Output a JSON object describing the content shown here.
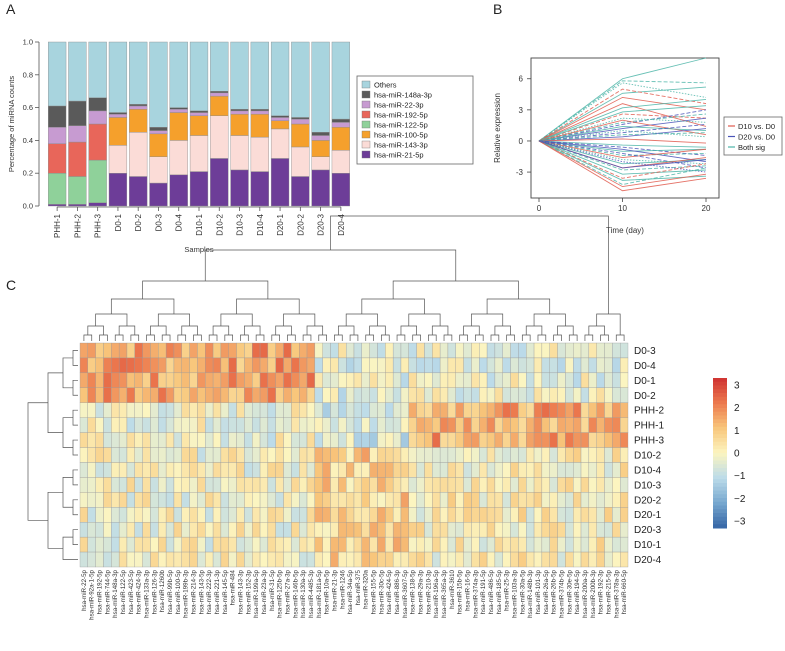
{
  "panel_letters": {
    "a": "A",
    "b": "B",
    "c": "C"
  },
  "colors": {
    "Others": "#a8d4de",
    "hsa-miR-148a-3p": "#5a5a5a",
    "hsa-miR-22-3p": "#c79bd1",
    "hsa-miR-192-5p": "#e8665a",
    "hsa-miR-122-5p": "#8fd19a",
    "hsa-miR-100-5p": "#f5a02c",
    "hsa-miR-143-3p": "#fbdcd7",
    "hsa-miR-21-5p": "#6d3d98"
  },
  "chart_data": [
    {
      "type": "bar",
      "stacked": true,
      "title": "",
      "xlabel": "Samples",
      "ylabel": "Percentage of miRNA counts",
      "ylim": [
        0,
        1.0
      ],
      "yticks": [
        "0.0",
        "0.2",
        "0.4",
        "0.6",
        "0.8",
        "1.0"
      ],
      "categories": [
        "PHH-1",
        "PHH-2",
        "PHH-3",
        "D0-1",
        "D0-2",
        "D0-3",
        "D0-4",
        "D10-1",
        "D10-2",
        "D10-3",
        "D10-4",
        "D20-1",
        "D20-2",
        "D20-3",
        "D20-4"
      ],
      "legend_order": [
        "Others",
        "hsa-miR-148a-3p",
        "hsa-miR-22-3p",
        "hsa-miR-192-5p",
        "hsa-miR-122-5p",
        "hsa-miR-100-5p",
        "hsa-miR-143-3p",
        "hsa-miR-21-5p"
      ],
      "series": [
        {
          "name": "hsa-miR-21-5p",
          "values": [
            0.01,
            0.01,
            0.02,
            0.2,
            0.18,
            0.14,
            0.19,
            0.21,
            0.29,
            0.22,
            0.21,
            0.29,
            0.18,
            0.22,
            0.2
          ]
        },
        {
          "name": "hsa-miR-143-3p",
          "values": [
            0.0,
            0.0,
            0.0,
            0.17,
            0.27,
            0.16,
            0.21,
            0.22,
            0.26,
            0.21,
            0.21,
            0.18,
            0.18,
            0.08,
            0.14
          ]
        },
        {
          "name": "hsa-miR-100-5p",
          "values": [
            0.0,
            0.0,
            0.0,
            0.17,
            0.14,
            0.14,
            0.17,
            0.12,
            0.12,
            0.13,
            0.14,
            0.05,
            0.14,
            0.1,
            0.14
          ]
        },
        {
          "name": "hsa-miR-122-5p",
          "values": [
            0.19,
            0.17,
            0.26,
            0.0,
            0.0,
            0.0,
            0.0,
            0.0,
            0.0,
            0.0,
            0.0,
            0.0,
            0.0,
            0.0,
            0.0
          ]
        },
        {
          "name": "hsa-miR-192-5p",
          "values": [
            0.18,
            0.21,
            0.22,
            0.0,
            0.0,
            0.0,
            0.0,
            0.0,
            0.0,
            0.0,
            0.0,
            0.0,
            0.0,
            0.0,
            0.0
          ]
        },
        {
          "name": "hsa-miR-22-3p",
          "values": [
            0.1,
            0.1,
            0.08,
            0.02,
            0.02,
            0.02,
            0.02,
            0.02,
            0.02,
            0.02,
            0.02,
            0.02,
            0.03,
            0.03,
            0.03
          ]
        },
        {
          "name": "hsa-miR-148a-3p",
          "values": [
            0.13,
            0.15,
            0.08,
            0.01,
            0.01,
            0.02,
            0.01,
            0.01,
            0.01,
            0.01,
            0.01,
            0.01,
            0.01,
            0.02,
            0.02
          ]
        },
        {
          "name": "Others",
          "values": [
            0.39,
            0.36,
            0.34,
            0.43,
            0.38,
            0.52,
            0.4,
            0.42,
            0.3,
            0.41,
            0.41,
            0.45,
            0.46,
            0.55,
            0.47
          ]
        }
      ]
    },
    {
      "type": "line",
      "xlabel": "Time (day)",
      "ylabel": "Relative expression",
      "x": [
        0,
        10,
        20
      ],
      "xticks": [
        "0",
        "10",
        "20"
      ],
      "yticks": [
        "-3",
        "0",
        "3",
        "6"
      ],
      "ylim": [
        -5.5,
        8.0
      ],
      "legend": [
        {
          "label": "D10 vs. D0",
          "color": "#e05a4e"
        },
        {
          "label": "D20 vs. D0",
          "color": "#4a54b8"
        },
        {
          "label": "Both sig",
          "color": "#4cb5a8"
        }
      ],
      "series": [
        {
          "group": "Both sig",
          "values": [
            0,
            6.0,
            8.0
          ]
        },
        {
          "group": "Both sig",
          "values": [
            0,
            5.8,
            5.6
          ]
        },
        {
          "group": "Both sig",
          "values": [
            0,
            5.6,
            4.2
          ]
        },
        {
          "group": "Both sig",
          "values": [
            0,
            4.6,
            5.2
          ]
        },
        {
          "group": "D10 vs. D0",
          "values": [
            0,
            5.0,
            3.6
          ]
        },
        {
          "group": "D10 vs. D0",
          "values": [
            0,
            4.2,
            3.0
          ]
        },
        {
          "group": "D10 vs. D0",
          "values": [
            0,
            3.6,
            1.4
          ]
        },
        {
          "group": "D10 vs. D0",
          "values": [
            0,
            2.6,
            2.2
          ]
        },
        {
          "group": "Both sig",
          "values": [
            0,
            3.2,
            4.0
          ]
        },
        {
          "group": "Both sig",
          "values": [
            0,
            2.8,
            3.4
          ]
        },
        {
          "group": "D20 vs. D0",
          "values": [
            0,
            1.6,
            3.0
          ]
        },
        {
          "group": "D20 vs. D0",
          "values": [
            0,
            1.2,
            2.2
          ]
        },
        {
          "group": "Both sig",
          "values": [
            0,
            2.2,
            1.8
          ]
        },
        {
          "group": "Both sig",
          "values": [
            0,
            1.8,
            2.6
          ]
        },
        {
          "group": "D10 vs. D0",
          "values": [
            0,
            2.0,
            0.6
          ]
        },
        {
          "group": "Both sig",
          "values": [
            0,
            1.4,
            1.0
          ]
        },
        {
          "group": "D20 vs. D0",
          "values": [
            0,
            0.8,
            1.6
          ]
        },
        {
          "group": "Both sig",
          "values": [
            0,
            1.0,
            0.4
          ]
        },
        {
          "group": "D20 vs. D0",
          "values": [
            0,
            0.4,
            1.2
          ]
        },
        {
          "group": "Both sig",
          "values": [
            0,
            0.6,
            0.8
          ]
        },
        {
          "group": "D10 vs. D0",
          "values": [
            0,
            0.2,
            -0.2
          ]
        },
        {
          "group": "Both sig",
          "values": [
            0,
            -0.4,
            -0.6
          ]
        },
        {
          "group": "D20 vs. D0",
          "values": [
            0,
            -0.6,
            -1.4
          ]
        },
        {
          "group": "Both sig",
          "values": [
            0,
            -1.0,
            -0.8
          ]
        },
        {
          "group": "D20 vs. D0",
          "values": [
            0,
            -0.8,
            -2.0
          ]
        },
        {
          "group": "Both sig",
          "values": [
            0,
            -1.4,
            -1.2
          ]
        },
        {
          "group": "D10 vs. D0",
          "values": [
            0,
            -1.6,
            -0.8
          ]
        },
        {
          "group": "Both sig",
          "values": [
            0,
            -1.8,
            -2.2
          ]
        },
        {
          "group": "D20 vs. D0",
          "values": [
            0,
            -1.2,
            -2.6
          ]
        },
        {
          "group": "Both sig",
          "values": [
            0,
            -2.2,
            -1.8
          ]
        },
        {
          "group": "D10 vs. D0",
          "values": [
            0,
            -2.6,
            -1.6
          ]
        },
        {
          "group": "Both sig",
          "values": [
            0,
            -2.8,
            -2.4
          ]
        },
        {
          "group": "D20 vs. D0",
          "values": [
            0,
            -2.0,
            -3.0
          ]
        },
        {
          "group": "Both sig",
          "values": [
            0,
            -3.2,
            -2.8
          ]
        },
        {
          "group": "D10 vs. D0",
          "values": [
            0,
            -3.6,
            -2.2
          ]
        },
        {
          "group": "Both sig",
          "values": [
            0,
            -3.8,
            -3.4
          ]
        },
        {
          "group": "D10 vs. D0",
          "values": [
            0,
            -4.4,
            -3.2
          ]
        },
        {
          "group": "Both sig",
          "values": [
            0,
            -4.2,
            -2.6
          ]
        },
        {
          "group": "D10 vs. D0",
          "values": [
            0,
            -4.8,
            -3.6
          ]
        },
        {
          "group": "D20 vs. D0",
          "values": [
            0,
            -2.6,
            -1.8
          ]
        }
      ]
    },
    {
      "type": "heatmap",
      "rows": [
        "D0-3",
        "D0-4",
        "D0-1",
        "D0-2",
        "PHH-2",
        "PHH-1",
        "PHH-3",
        "D10-2",
        "D10-4",
        "D10-3",
        "D20-2",
        "D20-1",
        "D20-3",
        "D10-1",
        "D20-4"
      ],
      "columns": [
        "hsa-miR-22-5p",
        "hsa-miR-92a-1-5p",
        "hsa-miR-192-5p",
        "hsa-miR-744-5p",
        "hsa-miR-148a-3p",
        "hsa-miR-122-5p",
        "hsa-miR-423-5p",
        "hsa-miR-424-3p",
        "hsa-miR-133a-3p",
        "hsa-miR-126-3p",
        "hsa-miR-1260b",
        "hsa-miR-99b-5p",
        "hsa-miR-100-5p",
        "hsa-miR-199b-3p",
        "hsa-miR-214-3p",
        "hsa-miR-143-5p",
        "hsa-miR-222-3p",
        "hsa-miR-221-3p",
        "hsa-miR-145-5p",
        "hsa-miR-484",
        "hsa-miR-143-3p",
        "hsa-miR-152-3p",
        "hsa-miR-199a-5p",
        "hsa-miR-23a-3p",
        "hsa-miR-31-5p",
        "hsa-miR-125b-5p",
        "hsa-miR-27a-3p",
        "hsa-miR-146b-5p",
        "hsa-miR-130a-3p",
        "hsa-miR-4485-3p",
        "hsa-miR-181a-5p",
        "hsa-miR-10a-5p",
        "hsa-miR-21-3p",
        "hsa-miR-1246",
        "hsa-miR-34a-5p",
        "hsa-miR-375",
        "hsa-miR-320a",
        "hsa-miR-155-5p",
        "hsa-miR-30c-5p",
        "hsa-miR-424-5p",
        "hsa-miR-886-3p",
        "hsa-miR-3607-5p",
        "hsa-miR-138-5p",
        "hsa-miR-29a-3p",
        "hsa-miR-210-3p",
        "hsa-miR-196a-5p",
        "hsa-miR-365a-3p",
        "hsa-miR-3610",
        "hsa-miR-15b-5p",
        "hsa-miR-16-5p",
        "hsa-miR-374a-3p",
        "hsa-miR-191-5p",
        "hsa-miR-486-5p",
        "hsa-miR-185-5p",
        "hsa-miR-25-3p",
        "hsa-miR-103a-3p",
        "hsa-miR-30a-5p",
        "hsa-miR-148b-3p",
        "hsa-miR-101-3p",
        "hsa-miR-26a-5p",
        "hsa-miR-26b-5p",
        "hsa-miR-374b-5p",
        "hsa-miR-30e-5p",
        "hsa-miR-194-5p",
        "hsa-miR-200a-3p",
        "hsa-miR-200b-3p",
        "hsa-miR-192-3p",
        "hsa-miR-215-5p",
        "hsa-miR-378a-3p",
        "hsa-miR-660-5p"
      ],
      "colorbar_ticks": [
        "3",
        "2",
        "1",
        "0",
        "−1",
        "−2",
        "−3"
      ],
      "value_range": [
        -3.3,
        3.3
      ],
      "colorscale": [
        "#3565a5",
        "#77a8cf",
        "#bcdbe9",
        "#fcf5c0",
        "#f8c67b",
        "#ec794e",
        "#cf3231"
      ]
    }
  ]
}
